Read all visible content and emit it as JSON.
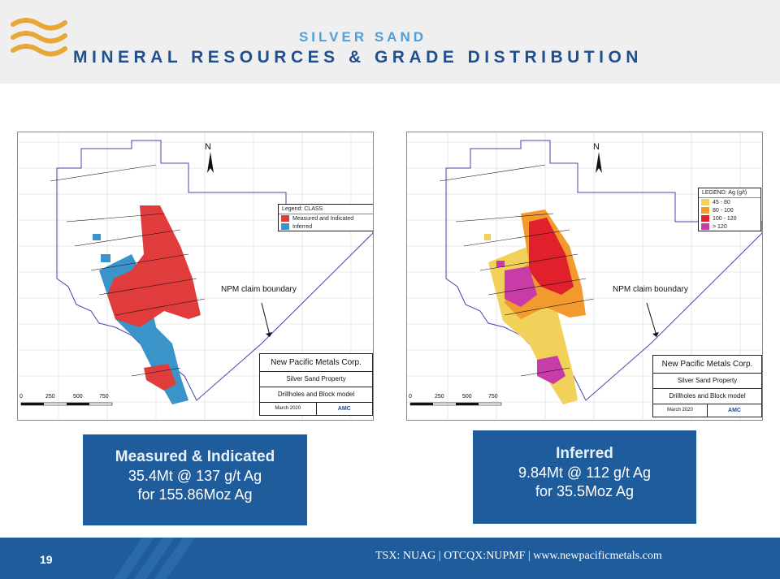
{
  "header": {
    "subtitle": "SILVER SAND",
    "title": "MINERAL RESOURCES & GRADE DISTRIBUTION",
    "logo_icon": "wave-logo-icon",
    "logo_color": "#e8a735"
  },
  "left_map": {
    "north_label": "N",
    "legend_title": "Legend: CLASS",
    "legend_items": [
      {
        "label": "Measured and Indicated",
        "color": "#e03c3c"
      },
      {
        "label": "Inferred",
        "color": "#3a93c9"
      }
    ],
    "boundary_label": "NPM claim boundary",
    "title_block": {
      "company": "New Pacific Metals Corp.",
      "property": "Silver Sand Property",
      "model": "Drillholes and Block model",
      "date": "March 2020",
      "logo_text": "AMC"
    },
    "scale": [
      "0",
      "250",
      "500",
      "750"
    ]
  },
  "right_map": {
    "north_label": "N",
    "legend_title": "LEGEND: Ag (g/t)",
    "legend_items": [
      {
        "label": "45 - 80",
        "color": "#f2d15a"
      },
      {
        "label": "80 - 100",
        "color": "#f29a2e"
      },
      {
        "label": "100 - 120",
        "color": "#e0202a"
      },
      {
        "label": "> 120",
        "color": "#c83ca8"
      }
    ],
    "boundary_label": "NPM claim boundary",
    "title_block": {
      "company": "New Pacific Metals Corp.",
      "property": "Silver Sand Property",
      "model": "Drillholes and Block model",
      "date": "March 2020",
      "logo_text": "AMC"
    },
    "scale": [
      "0",
      "250",
      "500",
      "750"
    ]
  },
  "summary_boxes": [
    {
      "line1": "Measured & Indicated",
      "line2": "35.4Mt @ 137 g/t Ag",
      "line3": "for 155.86Moz Ag"
    },
    {
      "line1": "Inferred",
      "line2": "9.84Mt @ 112 g/t Ag",
      "line3": "for 35.5Moz Ag"
    }
  ],
  "footer": {
    "page_number": "19",
    "text": "TSX: NUAG | OTCQX:NUPMF | www.newpacificmetals.com",
    "bar_color": "#1f5c9c"
  }
}
